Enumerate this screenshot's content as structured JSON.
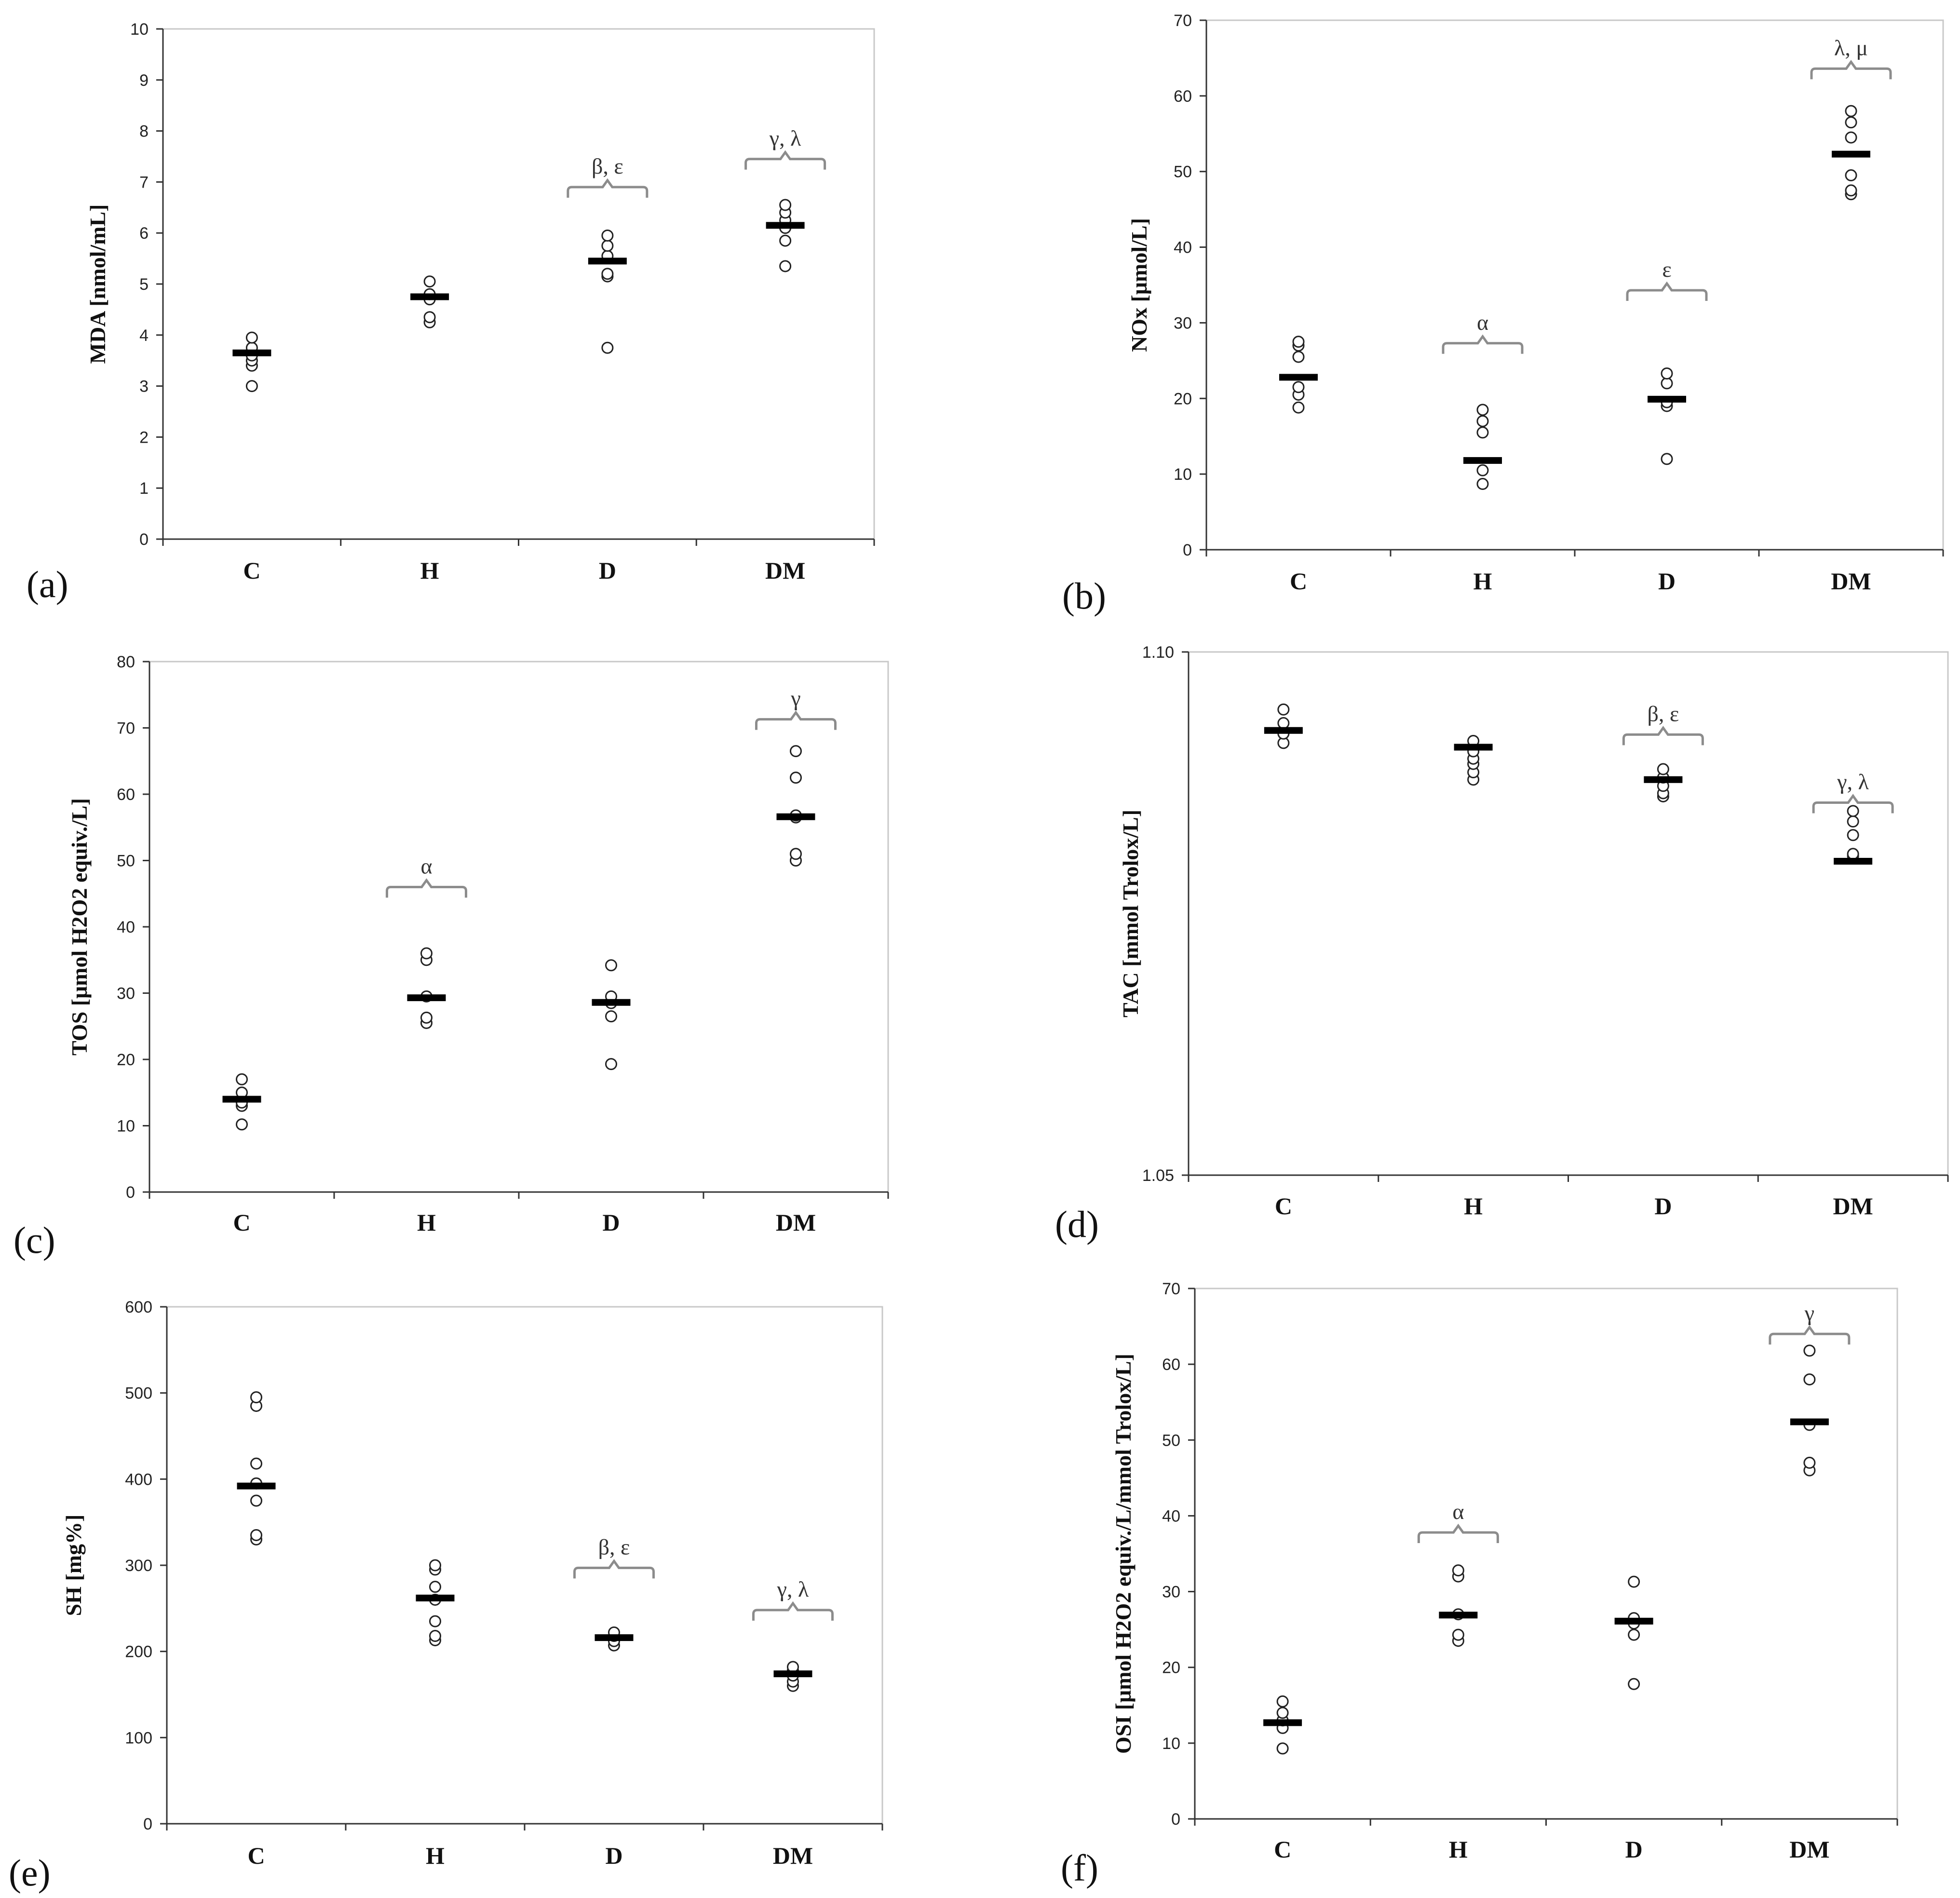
{
  "chart_data": [
    {
      "panel": "(a)",
      "type": "scatter",
      "title": "",
      "xlabel": "",
      "ylabel": "MDA [nmol/mL]",
      "categories": [
        "C",
        "H",
        "D",
        "DM"
      ],
      "ylim": [
        0,
        10
      ],
      "yticks": [
        0,
        1,
        2,
        3,
        4,
        5,
        6,
        7,
        8,
        9,
        10
      ],
      "ytick_labels": [
        "0",
        "1",
        "2",
        "3",
        "4",
        "5",
        "6",
        "7",
        "8",
        "9",
        "10"
      ],
      "points": [
        [
          3.0,
          3.4,
          3.5,
          3.6,
          3.75,
          3.95
        ],
        [
          4.25,
          4.35,
          4.7,
          4.8,
          5.05
        ],
        [
          3.75,
          5.15,
          5.2,
          5.55,
          5.75,
          5.95
        ],
        [
          5.35,
          5.85,
          6.1,
          6.25,
          6.4,
          6.55
        ]
      ],
      "means": [
        3.65,
        4.75,
        5.45,
        6.15
      ],
      "annotations": [
        {
          "category": "D",
          "text": "β, ε",
          "value": 6.9
        },
        {
          "category": "DM",
          "text": "γ, λ",
          "value": 7.45
        }
      ],
      "line_color": "#8c8c8c"
    },
    {
      "panel": "(b)",
      "type": "scatter",
      "title": "",
      "xlabel": "",
      "ylabel": "NOx [μmol/L]",
      "categories": [
        "C",
        "H",
        "D",
        "DM"
      ],
      "ylim": [
        0,
        70
      ],
      "yticks": [
        0,
        10,
        20,
        30,
        40,
        50,
        60,
        70
      ],
      "ytick_labels": [
        "0",
        "10",
        "20",
        "30",
        "40",
        "50",
        "60",
        "70"
      ],
      "points": [
        [
          18.8,
          20.5,
          21.5,
          25.5,
          27.0,
          27.5
        ],
        [
          8.7,
          10.5,
          15.5,
          17.0,
          18.5
        ],
        [
          12.0,
          19.0,
          19.5,
          22.0,
          23.3
        ],
        [
          47.0,
          47.5,
          49.5,
          54.5,
          56.5,
          58.0
        ]
      ],
      "means": [
        22.8,
        11.8,
        19.9,
        52.3
      ],
      "annotations": [
        {
          "category": "H",
          "text": "α",
          "value": 27.3
        },
        {
          "category": "D",
          "text": "ε",
          "value": 34.3
        },
        {
          "category": "DM",
          "text": "λ, μ",
          "value": 63.6
        }
      ],
      "line_color": "#8c8c8c"
    },
    {
      "panel": "(c)",
      "type": "scatter",
      "title": "",
      "xlabel": "",
      "ylabel": "TOS [μmol H2O2 equiv./L]",
      "categories": [
        "C",
        "H",
        "D",
        "DM"
      ],
      "ylim": [
        0,
        80
      ],
      "yticks": [
        0,
        10,
        20,
        30,
        40,
        50,
        60,
        70,
        80
      ],
      "ytick_labels": [
        "0",
        "10",
        "20",
        "30",
        "40",
        "50",
        "60",
        "70",
        "80"
      ],
      "points": [
        [
          10.2,
          13.0,
          13.5,
          15.0,
          17.0
        ],
        [
          25.5,
          26.3,
          29.5,
          35.0,
          36.0
        ],
        [
          19.3,
          26.5,
          28.5,
          29.5,
          34.2
        ],
        [
          50.0,
          51.0,
          56.5,
          56.8,
          62.5,
          66.5
        ]
      ],
      "means": [
        14.0,
        29.3,
        28.6,
        56.6
      ],
      "annotations": [
        {
          "category": "H",
          "text": "α",
          "value": 46.0
        },
        {
          "category": "DM",
          "text": "γ",
          "value": 71.3
        }
      ],
      "line_color": "#8c8c8c"
    },
    {
      "panel": "(d)",
      "type": "scatter",
      "title": "",
      "xlabel": "",
      "ylabel": "TAC [mmol Trolox/L]",
      "categories": [
        "C",
        "H",
        "D",
        "DM"
      ],
      "ylim": [
        1.05,
        1.1
      ],
      "yticks": [
        1.05,
        1.1
      ],
      "ytick_labels": [
        "1.05",
        "1.10"
      ],
      "points": [
        [
          1.0913,
          1.0922,
          1.0932,
          1.0945
        ],
        [
          1.0878,
          1.0885,
          1.0893,
          1.0898,
          1.0905,
          1.0915
        ],
        [
          1.0862,
          1.0865,
          1.0872,
          1.088,
          1.0888
        ],
        [
          1.0805,
          1.0807,
          1.0825,
          1.0838,
          1.0848
        ]
      ],
      "means": [
        1.0925,
        1.0909,
        1.0878,
        1.08
      ],
      "annotations": [
        {
          "category": "D",
          "text": "β, ε",
          "value": 1.0921
        },
        {
          "category": "DM",
          "text": "γ, λ",
          "value": 1.0856
        }
      ],
      "line_color": "#8c8c8c"
    },
    {
      "panel": "(e)",
      "type": "scatter",
      "title": "",
      "xlabel": "",
      "ylabel": "SH [mg%]",
      "categories": [
        "C",
        "H",
        "D",
        "DM"
      ],
      "ylim": [
        0,
        600
      ],
      "yticks": [
        0,
        100,
        200,
        300,
        400,
        500,
        600
      ],
      "ytick_labels": [
        "0",
        "100",
        "200",
        "300",
        "400",
        "500",
        "600"
      ],
      "points": [
        [
          330,
          335,
          375,
          395,
          418,
          485,
          495
        ],
        [
          213,
          218,
          235,
          260,
          275,
          295,
          300
        ],
        [
          207,
          212,
          218,
          222
        ],
        [
          160,
          165,
          172,
          178,
          182
        ]
      ],
      "means": [
        392,
        262,
        216,
        174
      ],
      "annotations": [
        {
          "category": "D",
          "text": "β, ε",
          "value": 297
        },
        {
          "category": "DM",
          "text": "γ, λ",
          "value": 248
        }
      ],
      "line_color": "#8c8c8c"
    },
    {
      "panel": "(f)",
      "type": "scatter",
      "title": "",
      "xlabel": "",
      "ylabel": "OSI [μmol H2O2 equiv./L/mmol Trolox/L]",
      "categories": [
        "C",
        "H",
        "D",
        "DM"
      ],
      "ylim": [
        0,
        70
      ],
      "yticks": [
        0,
        10,
        20,
        30,
        40,
        50,
        60,
        70
      ],
      "ytick_labels": [
        "0",
        "10",
        "20",
        "30",
        "40",
        "50",
        "60",
        "70"
      ],
      "points": [
        [
          9.3,
          12.0,
          13.0,
          14.0,
          15.5
        ],
        [
          23.5,
          24.3,
          27.0,
          32.0,
          32.8
        ],
        [
          17.8,
          24.3,
          25.8,
          26.5,
          31.3
        ],
        [
          46.0,
          47.0,
          52.0,
          58.0,
          61.8
        ]
      ],
      "means": [
        12.7,
        26.9,
        26.1,
        52.4
      ],
      "annotations": [
        {
          "category": "H",
          "text": "α",
          "value": 37.8
        },
        {
          "category": "DM",
          "text": "γ",
          "value": 64.0
        }
      ],
      "line_color": "#8c8c8c"
    }
  ]
}
